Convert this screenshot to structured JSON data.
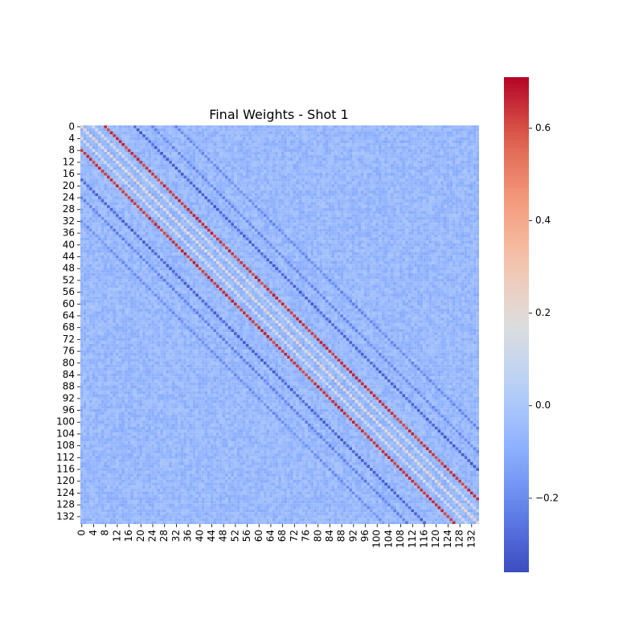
{
  "chart_data": {
    "type": "heatmap",
    "title": "Final Weights - Shot 1",
    "xlabel": "",
    "ylabel": "",
    "n": 135,
    "x_tick_labels": [
      "0",
      "4",
      "8",
      "12",
      "16",
      "20",
      "24",
      "28",
      "32",
      "36",
      "40",
      "44",
      "48",
      "52",
      "56",
      "60",
      "64",
      "68",
      "72",
      "76",
      "80",
      "84",
      "88",
      "92",
      "96",
      "100",
      "104",
      "108",
      "112",
      "116",
      "120",
      "124",
      "128",
      "132"
    ],
    "y_tick_labels": [
      "0",
      "4",
      "8",
      "12",
      "16",
      "20",
      "24",
      "28",
      "32",
      "36",
      "40",
      "44",
      "48",
      "52",
      "56",
      "60",
      "64",
      "68",
      "72",
      "76",
      "80",
      "84",
      "88",
      "92",
      "96",
      "100",
      "104",
      "108",
      "112",
      "116",
      "120",
      "124",
      "128",
      "132"
    ],
    "colormap": "coolwarm",
    "vmin": -0.36,
    "vmax": 0.71,
    "colorbar_ticks": [
      {
        "value": 0.6,
        "label": "0.6"
      },
      {
        "value": 0.4,
        "label": "0.4"
      },
      {
        "value": 0.2,
        "label": "0.2"
      },
      {
        "value": 0.0,
        "label": "0.0"
      },
      {
        "value": -0.2,
        "label": "−0.2"
      }
    ],
    "background_value": -0.06,
    "diagonal_bands": [
      {
        "offset": -8,
        "value": 0.64
      },
      {
        "offset": 8,
        "value": 0.64
      },
      {
        "offset": 0,
        "value": 0.2
      },
      {
        "offset": -4,
        "value": 0.12
      },
      {
        "offset": 4,
        "value": 0.12
      },
      {
        "offset": 18,
        "value": -0.3
      },
      {
        "offset": -18,
        "value": -0.3
      },
      {
        "offset": 24,
        "value": -0.2
      },
      {
        "offset": -24,
        "value": -0.22
      },
      {
        "offset": 32,
        "value": -0.2
      },
      {
        "offset": -32,
        "value": -0.18
      }
    ]
  }
}
